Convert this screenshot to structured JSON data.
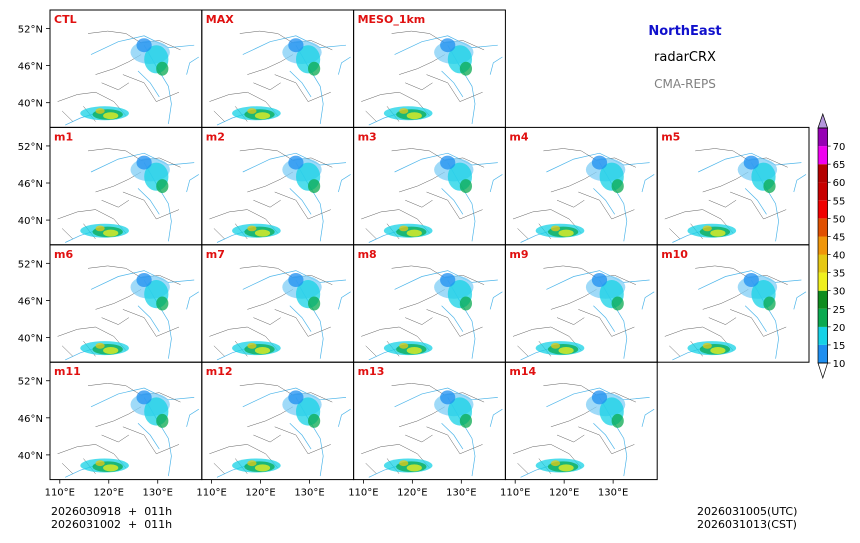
{
  "header": {
    "region": "NorthEast",
    "variable": "radarCRX",
    "source": "CMA-REPS",
    "region_color": "#1010cc",
    "source_color": "#808080"
  },
  "panels": [
    {
      "label": "CTL",
      "cell": [
        0,
        0
      ]
    },
    {
      "label": "MAX",
      "cell": [
        0,
        1
      ]
    },
    {
      "label": "MESO_1km",
      "cell": [
        0,
        2
      ]
    },
    {
      "label": "m1",
      "cell": [
        1,
        0
      ]
    },
    {
      "label": "m2",
      "cell": [
        1,
        1
      ]
    },
    {
      "label": "m3",
      "cell": [
        1,
        2
      ]
    },
    {
      "label": "m4",
      "cell": [
        1,
        3
      ]
    },
    {
      "label": "m5",
      "cell": [
        1,
        4
      ]
    },
    {
      "label": "m6",
      "cell": [
        2,
        0
      ]
    },
    {
      "label": "m7",
      "cell": [
        2,
        1
      ]
    },
    {
      "label": "m8",
      "cell": [
        2,
        2
      ]
    },
    {
      "label": "m9",
      "cell": [
        2,
        3
      ]
    },
    {
      "label": "m10",
      "cell": [
        2,
        4
      ]
    },
    {
      "label": "m11",
      "cell": [
        3,
        0
      ]
    },
    {
      "label": "m12",
      "cell": [
        3,
        1
      ]
    },
    {
      "label": "m13",
      "cell": [
        3,
        2
      ]
    },
    {
      "label": "m14",
      "cell": [
        3,
        3
      ]
    }
  ],
  "panel_label_color": "#e01010",
  "lat_labels": [
    "52°N",
    "46°N",
    "40°N"
  ],
  "lon_labels": [
    "110°E",
    "120°E",
    "130°E"
  ],
  "colorbar": {
    "levels": [
      "10",
      "15",
      "20",
      "25",
      "30",
      "35",
      "40",
      "45",
      "50",
      "55",
      "60",
      "65",
      "70"
    ],
    "colors": [
      "#1e8ff0",
      "#16d2e6",
      "#0aaa50",
      "#0f8c1e",
      "#f0f01e",
      "#e6c814",
      "#f0960a",
      "#e05000",
      "#f00000",
      "#c80000",
      "#b40000",
      "#f000f0",
      "#9600b4",
      "#b496dc"
    ]
  },
  "footer": {
    "init_utc": "2026030918  +  011h",
    "init_cst": "2026031002  +  011h",
    "valid_utc": "2026031005(UTC)",
    "valid_cst": "2026031013(CST)"
  }
}
